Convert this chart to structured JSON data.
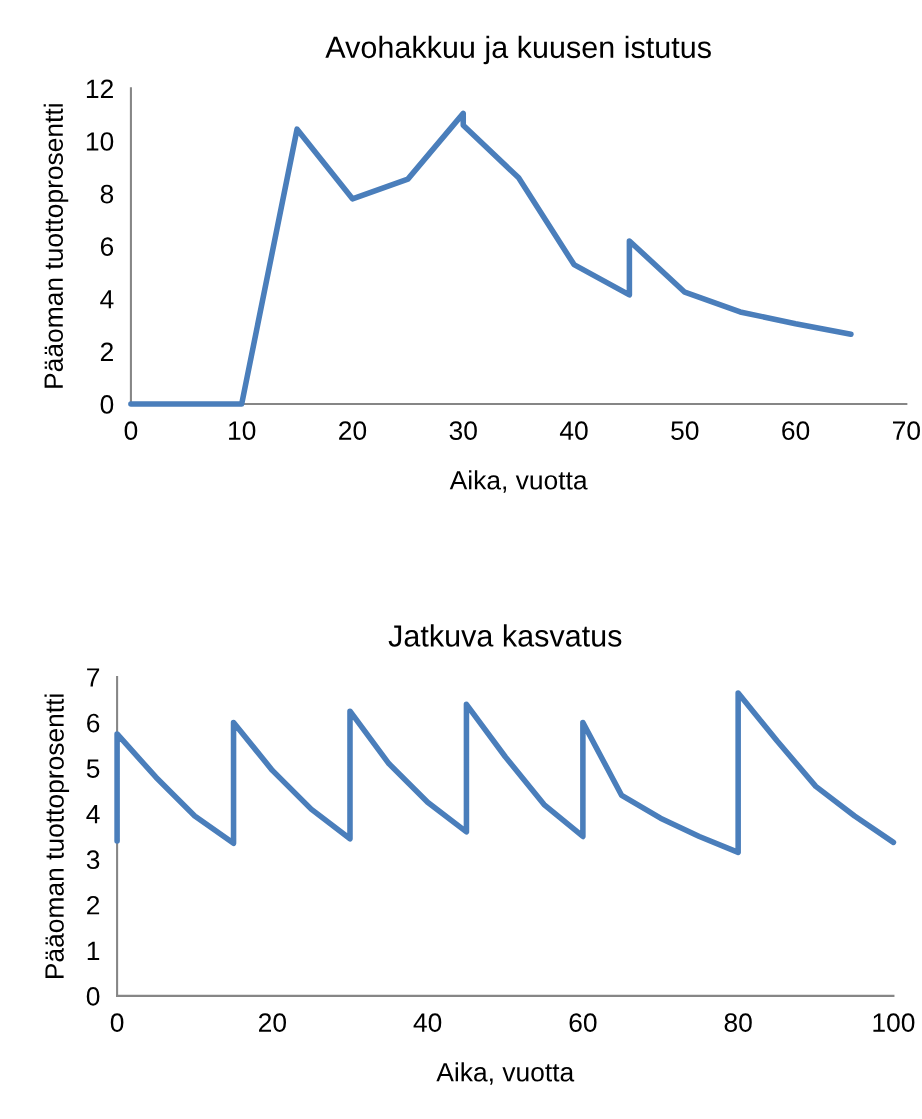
{
  "chart_data": [
    {
      "type": "line",
      "title": "Avohakkuu ja kuusen istutus",
      "xlabel": "Aika, vuotta",
      "ylabel": "Pääoman tuottoprosentti",
      "grid": false,
      "marker": "none",
      "line_style": "solid",
      "xlim": [
        0,
        70
      ],
      "xticks": [
        0,
        10,
        20,
        30,
        40,
        50,
        60,
        70
      ],
      "ylim": [
        0,
        12
      ],
      "yticks": [
        0,
        2,
        4,
        6,
        8,
        10,
        12
      ],
      "series": [
        {
          "color": "#4a7ebb",
          "x": [
            0,
            10,
            15,
            20,
            25,
            30,
            30,
            35,
            40,
            45,
            45,
            50,
            55,
            60,
            65
          ],
          "values": [
            0,
            0,
            10.45,
            7.8,
            8.55,
            11.05,
            10.6,
            8.6,
            5.3,
            4.15,
            6.2,
            4.25,
            3.5,
            3.05,
            2.65
          ]
        }
      ]
    },
    {
      "type": "line",
      "title": "Jatkuva kasvatus",
      "xlabel": "Aika, vuotta",
      "ylabel": "Pääoman tuottoprosentti",
      "grid": false,
      "marker": "none",
      "line_style": "solid",
      "xlim": [
        0,
        100
      ],
      "xticks": [
        0,
        20,
        40,
        60,
        80,
        100
      ],
      "ylim": [
        0,
        7
      ],
      "yticks": [
        0,
        1,
        2,
        3,
        4,
        5,
        6,
        7
      ],
      "series": [
        {
          "color": "#4a7ebb",
          "x": [
            0,
            0,
            5,
            10,
            15,
            15,
            20,
            25,
            30,
            30,
            35,
            40,
            45,
            45,
            50,
            55,
            60,
            60,
            65,
            70,
            75,
            80,
            80,
            85,
            90,
            95,
            100
          ],
          "values": [
            3.4,
            5.75,
            4.8,
            3.95,
            3.35,
            6.0,
            4.95,
            4.1,
            3.45,
            6.25,
            5.1,
            4.25,
            3.6,
            6.4,
            5.25,
            4.2,
            3.5,
            6.0,
            4.4,
            3.9,
            3.5,
            3.15,
            6.65,
            5.6,
            4.6,
            3.95,
            3.37
          ]
        }
      ]
    }
  ]
}
